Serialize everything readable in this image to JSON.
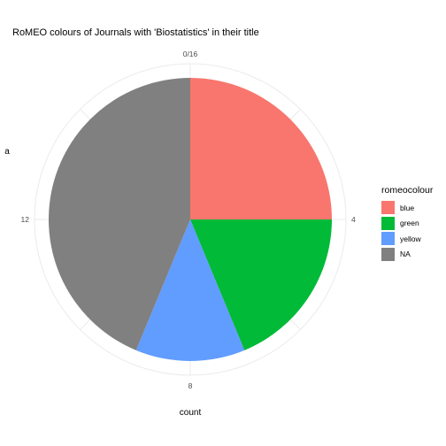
{
  "chart_data": {
    "type": "pie",
    "title": "RoMEO colours of Journals with 'Biostatistics' in their title",
    "xlabel": "count",
    "ylabel": "a",
    "total": 16,
    "tick_labels": [
      "0/16",
      "4",
      "8",
      "12"
    ],
    "tick_values": [
      0,
      4,
      8,
      12
    ],
    "legend_title": "romeocolour",
    "legend_position": "right",
    "grid": true,
    "series": [
      {
        "name": "blue",
        "value": 4,
        "color": "#F8766D"
      },
      {
        "name": "green",
        "value": 3,
        "color": "#00BA38"
      },
      {
        "name": "yellow",
        "value": 2,
        "color": "#619CFF"
      },
      {
        "name": "NA",
        "value": 7,
        "color": "#808080"
      }
    ]
  }
}
